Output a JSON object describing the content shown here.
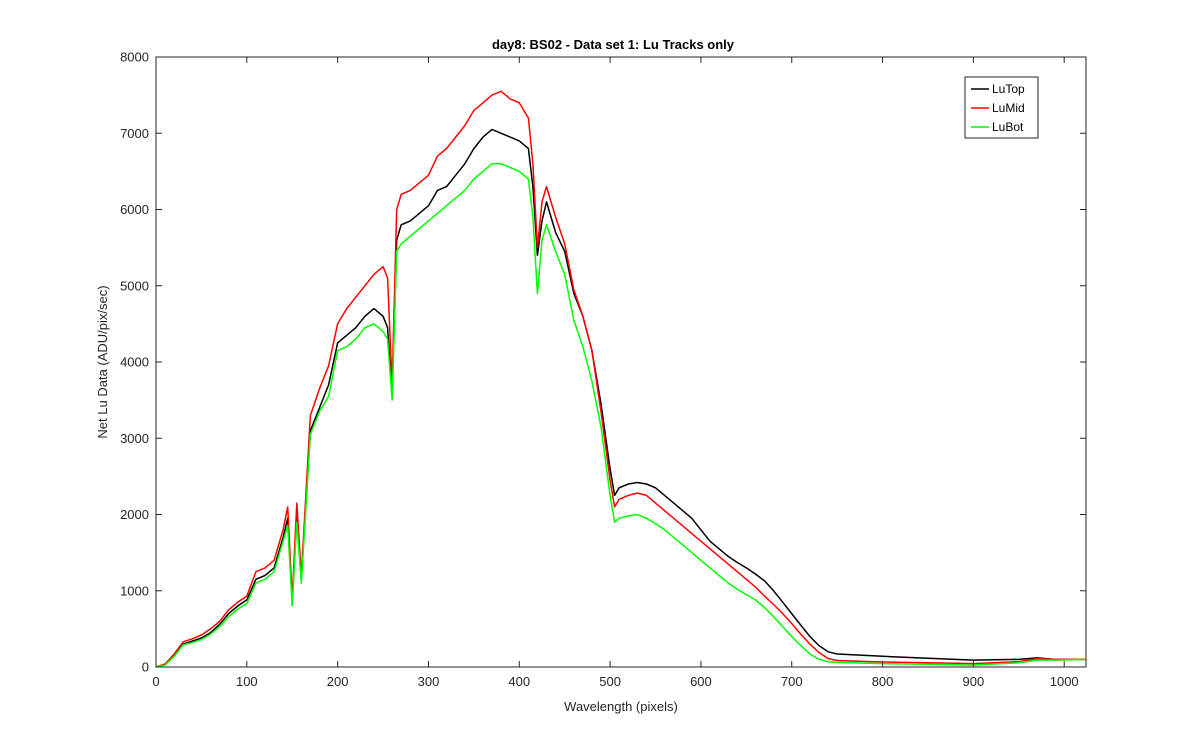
{
  "chart_data": {
    "type": "line",
    "title": "day8: BS02 - Data set 1: Lu Tracks only",
    "xlabel": "Wavelength (pixels)",
    "ylabel": "Net Lu Data (ADU/pix/sec)",
    "xlim": [
      0,
      1024
    ],
    "ylim": [
      0,
      8000
    ],
    "xticks": [
      0,
      100,
      200,
      300,
      400,
      500,
      600,
      700,
      800,
      900,
      1000
    ],
    "yticks": [
      0,
      1000,
      2000,
      3000,
      4000,
      5000,
      6000,
      7000,
      8000
    ],
    "grid": false,
    "legend_location": "top-right",
    "series": [
      {
        "name": "LuTop",
        "color": "#000000",
        "points": [
          [
            0,
            0
          ],
          [
            10,
            30
          ],
          [
            20,
            150
          ],
          [
            30,
            300
          ],
          [
            40,
            340
          ],
          [
            50,
            380
          ],
          [
            60,
            450
          ],
          [
            70,
            560
          ],
          [
            80,
            700
          ],
          [
            90,
            800
          ],
          [
            100,
            880
          ],
          [
            110,
            1150
          ],
          [
            120,
            1200
          ],
          [
            130,
            1300
          ],
          [
            140,
            1700
          ],
          [
            145,
            1950
          ],
          [
            150,
            850
          ],
          [
            155,
            2000
          ],
          [
            160,
            1150
          ],
          [
            170,
            3100
          ],
          [
            180,
            3400
          ],
          [
            190,
            3700
          ],
          [
            200,
            4250
          ],
          [
            210,
            4350
          ],
          [
            220,
            4450
          ],
          [
            230,
            4600
          ],
          [
            240,
            4700
          ],
          [
            250,
            4600
          ],
          [
            255,
            4450
          ],
          [
            260,
            3550
          ],
          [
            265,
            5600
          ],
          [
            270,
            5800
          ],
          [
            280,
            5850
          ],
          [
            290,
            5950
          ],
          [
            300,
            6050
          ],
          [
            310,
            6250
          ],
          [
            320,
            6300
          ],
          [
            330,
            6450
          ],
          [
            340,
            6600
          ],
          [
            350,
            6800
          ],
          [
            360,
            6950
          ],
          [
            370,
            7050
          ],
          [
            380,
            7000
          ],
          [
            390,
            6950
          ],
          [
            400,
            6900
          ],
          [
            405,
            6850
          ],
          [
            410,
            6800
          ],
          [
            415,
            6300
          ],
          [
            420,
            5400
          ],
          [
            425,
            5850
          ],
          [
            430,
            6100
          ],
          [
            440,
            5700
          ],
          [
            450,
            5450
          ],
          [
            460,
            4900
          ],
          [
            470,
            4600
          ],
          [
            480,
            4150
          ],
          [
            490,
            3450
          ],
          [
            500,
            2600
          ],
          [
            505,
            2250
          ],
          [
            510,
            2350
          ],
          [
            520,
            2400
          ],
          [
            530,
            2420
          ],
          [
            540,
            2400
          ],
          [
            550,
            2350
          ],
          [
            560,
            2250
          ],
          [
            570,
            2150
          ],
          [
            580,
            2050
          ],
          [
            590,
            1950
          ],
          [
            600,
            1800
          ],
          [
            610,
            1650
          ],
          [
            620,
            1550
          ],
          [
            630,
            1450
          ],
          [
            640,
            1370
          ],
          [
            650,
            1300
          ],
          [
            660,
            1220
          ],
          [
            670,
            1130
          ],
          [
            680,
            1000
          ],
          [
            690,
            850
          ],
          [
            700,
            700
          ],
          [
            710,
            550
          ],
          [
            720,
            400
          ],
          [
            730,
            280
          ],
          [
            740,
            200
          ],
          [
            750,
            170
          ],
          [
            800,
            140
          ],
          [
            850,
            115
          ],
          [
            900,
            90
          ],
          [
            950,
            100
          ],
          [
            970,
            120
          ],
          [
            990,
            100
          ],
          [
            1024,
            100
          ]
        ]
      },
      {
        "name": "LuMid",
        "color": "#ff0000",
        "points": [
          [
            0,
            0
          ],
          [
            10,
            40
          ],
          [
            20,
            170
          ],
          [
            30,
            330
          ],
          [
            40,
            370
          ],
          [
            50,
            420
          ],
          [
            60,
            500
          ],
          [
            70,
            600
          ],
          [
            80,
            750
          ],
          [
            90,
            850
          ],
          [
            100,
            930
          ],
          [
            110,
            1250
          ],
          [
            120,
            1300
          ],
          [
            130,
            1400
          ],
          [
            140,
            1800
          ],
          [
            145,
            2100
          ],
          [
            150,
            900
          ],
          [
            155,
            2150
          ],
          [
            160,
            1200
          ],
          [
            170,
            3300
          ],
          [
            180,
            3650
          ],
          [
            190,
            3950
          ],
          [
            200,
            4500
          ],
          [
            210,
            4700
          ],
          [
            220,
            4850
          ],
          [
            230,
            5000
          ],
          [
            240,
            5150
          ],
          [
            250,
            5250
          ],
          [
            255,
            5100
          ],
          [
            260,
            3700
          ],
          [
            265,
            6000
          ],
          [
            270,
            6200
          ],
          [
            280,
            6250
          ],
          [
            290,
            6350
          ],
          [
            300,
            6450
          ],
          [
            310,
            6700
          ],
          [
            320,
            6800
          ],
          [
            330,
            6950
          ],
          [
            340,
            7100
          ],
          [
            350,
            7300
          ],
          [
            360,
            7400
          ],
          [
            370,
            7500
          ],
          [
            380,
            7550
          ],
          [
            390,
            7450
          ],
          [
            400,
            7400
          ],
          [
            405,
            7300
          ],
          [
            410,
            7200
          ],
          [
            415,
            6600
          ],
          [
            420,
            5500
          ],
          [
            425,
            6100
          ],
          [
            430,
            6300
          ],
          [
            440,
            5900
          ],
          [
            450,
            5550
          ],
          [
            460,
            4950
          ],
          [
            470,
            4600
          ],
          [
            480,
            4150
          ],
          [
            490,
            3350
          ],
          [
            500,
            2450
          ],
          [
            505,
            2100
          ],
          [
            510,
            2200
          ],
          [
            520,
            2250
          ],
          [
            530,
            2280
          ],
          [
            540,
            2250
          ],
          [
            550,
            2150
          ],
          [
            560,
            2050
          ],
          [
            570,
            1950
          ],
          [
            580,
            1850
          ],
          [
            590,
            1750
          ],
          [
            600,
            1650
          ],
          [
            610,
            1550
          ],
          [
            620,
            1450
          ],
          [
            630,
            1350
          ],
          [
            640,
            1250
          ],
          [
            650,
            1150
          ],
          [
            660,
            1050
          ],
          [
            670,
            930
          ],
          [
            680,
            820
          ],
          [
            690,
            700
          ],
          [
            700,
            570
          ],
          [
            710,
            430
          ],
          [
            720,
            300
          ],
          [
            730,
            190
          ],
          [
            740,
            110
          ],
          [
            750,
            85
          ],
          [
            800,
            65
          ],
          [
            850,
            55
          ],
          [
            900,
            45
          ],
          [
            950,
            70
          ],
          [
            970,
            110
          ],
          [
            990,
            100
          ],
          [
            1024,
            100
          ]
        ]
      },
      {
        "name": "LuBot",
        "color": "#00ff00",
        "points": [
          [
            0,
            0
          ],
          [
            10,
            25
          ],
          [
            20,
            140
          ],
          [
            30,
            290
          ],
          [
            40,
            320
          ],
          [
            50,
            360
          ],
          [
            60,
            430
          ],
          [
            70,
            530
          ],
          [
            80,
            660
          ],
          [
            90,
            760
          ],
          [
            100,
            830
          ],
          [
            110,
            1100
          ],
          [
            120,
            1150
          ],
          [
            130,
            1250
          ],
          [
            140,
            1650
          ],
          [
            145,
            1850
          ],
          [
            150,
            800
          ],
          [
            155,
            1900
          ],
          [
            160,
            1100
          ],
          [
            170,
            3050
          ],
          [
            180,
            3350
          ],
          [
            190,
            3550
          ],
          [
            200,
            4150
          ],
          [
            210,
            4200
          ],
          [
            220,
            4300
          ],
          [
            230,
            4450
          ],
          [
            240,
            4500
          ],
          [
            250,
            4400
          ],
          [
            255,
            4300
          ],
          [
            260,
            3500
          ],
          [
            265,
            5450
          ],
          [
            270,
            5550
          ],
          [
            280,
            5650
          ],
          [
            290,
            5750
          ],
          [
            300,
            5850
          ],
          [
            310,
            5950
          ],
          [
            320,
            6050
          ],
          [
            330,
            6150
          ],
          [
            340,
            6250
          ],
          [
            350,
            6400
          ],
          [
            360,
            6500
          ],
          [
            370,
            6600
          ],
          [
            380,
            6600
          ],
          [
            390,
            6550
          ],
          [
            400,
            6500
          ],
          [
            405,
            6450
          ],
          [
            410,
            6400
          ],
          [
            415,
            5900
          ],
          [
            420,
            4900
          ],
          [
            425,
            5600
          ],
          [
            430,
            5800
          ],
          [
            440,
            5450
          ],
          [
            450,
            5150
          ],
          [
            460,
            4550
          ],
          [
            470,
            4200
          ],
          [
            480,
            3750
          ],
          [
            490,
            3150
          ],
          [
            500,
            2250
          ],
          [
            505,
            1900
          ],
          [
            510,
            1950
          ],
          [
            520,
            1980
          ],
          [
            530,
            2000
          ],
          [
            540,
            1950
          ],
          [
            550,
            1880
          ],
          [
            560,
            1800
          ],
          [
            570,
            1700
          ],
          [
            580,
            1600
          ],
          [
            590,
            1500
          ],
          [
            600,
            1400
          ],
          [
            610,
            1300
          ],
          [
            620,
            1200
          ],
          [
            630,
            1100
          ],
          [
            640,
            1020
          ],
          [
            650,
            950
          ],
          [
            660,
            880
          ],
          [
            670,
            780
          ],
          [
            680,
            660
          ],
          [
            690,
            530
          ],
          [
            700,
            400
          ],
          [
            710,
            280
          ],
          [
            720,
            170
          ],
          [
            730,
            100
          ],
          [
            740,
            70
          ],
          [
            750,
            60
          ],
          [
            800,
            45
          ],
          [
            850,
            35
          ],
          [
            900,
            25
          ],
          [
            950,
            55
          ],
          [
            970,
            90
          ],
          [
            990,
            90
          ],
          [
            1024,
            100
          ]
        ]
      }
    ]
  }
}
